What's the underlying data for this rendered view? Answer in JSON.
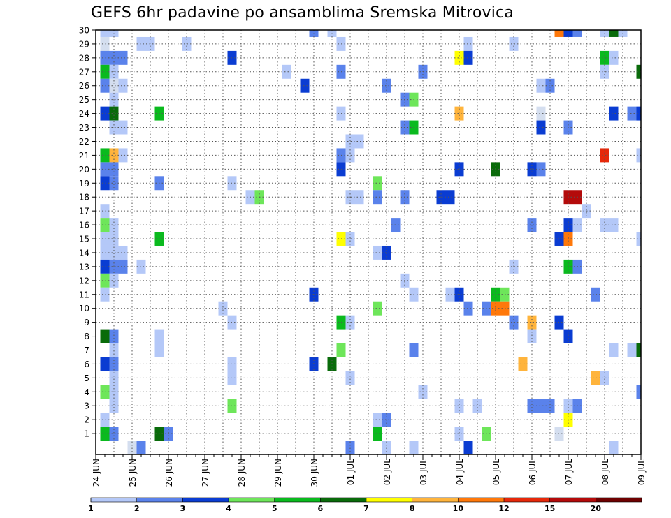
{
  "chart_data": {
    "type": "heatmap",
    "title": "GEFS 6hr padavine po ansamblima Sremska Mitrovica",
    "y_categories": [
      "1",
      "2",
      "3",
      "4",
      "5",
      "6",
      "7",
      "8",
      "9",
      "10",
      "11",
      "12",
      "13",
      "14",
      "15",
      "16",
      "17",
      "18",
      "19",
      "20",
      "21",
      "22",
      "23",
      "24",
      "25",
      "26",
      "27",
      "28",
      "29",
      "30"
    ],
    "x_tick_labels": [
      "24 JUN",
      "25 JUN",
      "26 JUN",
      "27 JUN",
      "28 JUN",
      "29 JUN",
      "30 JUN",
      "01 JUL",
      "02 JUL",
      "03 JUL",
      "04 JUL",
      "05 JUL",
      "06 JUL",
      "07 JUL",
      "08 JUL",
      "09 JUL"
    ],
    "x_range_days": [
      0,
      15
    ],
    "grid": true,
    "legend": {
      "placement": "bottom",
      "labels": [
        "1",
        "2",
        "3",
        "4",
        "5",
        "6",
        "7",
        "8",
        "10",
        "12",
        "15",
        "20"
      ],
      "colors": [
        "#b4c8f8",
        "#5a82eb",
        "#0a3cd2",
        "#6ee65a",
        "#0aba1e",
        "#096b0a",
        "#ffff00",
        "#ffb43c",
        "#ff780a",
        "#e6280a",
        "#b40a0a",
        "#6e0000"
      ]
    },
    "cells": [
      [
        0.25,
        30,
        0
      ],
      [
        0.25,
        29,
        -1
      ],
      [
        0.25,
        28,
        1
      ],
      [
        0.25,
        27,
        4
      ],
      [
        0.25,
        26,
        1
      ],
      [
        0.25,
        24,
        2
      ],
      [
        0.25,
        21,
        4
      ],
      [
        0.25,
        20,
        1
      ],
      [
        0.25,
        19,
        2
      ],
      [
        0.25,
        17,
        0
      ],
      [
        0.25,
        16,
        3
      ],
      [
        0.25,
        15,
        0
      ],
      [
        0.25,
        14,
        0
      ],
      [
        0.25,
        13,
        2
      ],
      [
        0.25,
        12,
        3
      ],
      [
        0.25,
        11,
        0
      ],
      [
        0.25,
        8,
        5
      ],
      [
        0.25,
        6,
        2
      ],
      [
        0.25,
        4,
        3
      ],
      [
        0.25,
        2,
        0
      ],
      [
        0.25,
        1,
        4
      ],
      [
        0.5,
        30,
        0
      ],
      [
        0.5,
        28,
        1
      ],
      [
        0.5,
        27,
        0
      ],
      [
        0.5,
        26,
        -1
      ],
      [
        0.5,
        25,
        0
      ],
      [
        0.5,
        24,
        5
      ],
      [
        0.5,
        23,
        0
      ],
      [
        0.5,
        21,
        7
      ],
      [
        0.5,
        20,
        1
      ],
      [
        0.5,
        19,
        1
      ],
      [
        0.5,
        16,
        0
      ],
      [
        0.5,
        15,
        0
      ],
      [
        0.5,
        14,
        0
      ],
      [
        0.5,
        13,
        1
      ],
      [
        0.5,
        12,
        0
      ],
      [
        0.5,
        8,
        1
      ],
      [
        0.5,
        7,
        0
      ],
      [
        0.5,
        6,
        1
      ],
      [
        0.5,
        5,
        0
      ],
      [
        0.5,
        4,
        0
      ],
      [
        0.5,
        3,
        0
      ],
      [
        0.5,
        1,
        1
      ],
      [
        0.75,
        28,
        1
      ],
      [
        0.75,
        26,
        0
      ],
      [
        0.75,
        23,
        0
      ],
      [
        0.75,
        21,
        0
      ],
      [
        0.75,
        14,
        0
      ],
      [
        0.75,
        13,
        1
      ],
      [
        1.0,
        0,
        -1
      ],
      [
        1.25,
        29,
        0
      ],
      [
        1.25,
        13,
        0
      ],
      [
        1.25,
        0,
        1
      ],
      [
        1.5,
        29,
        0
      ],
      [
        1.75,
        24,
        4
      ],
      [
        1.75,
        19,
        1
      ],
      [
        1.75,
        15,
        4
      ],
      [
        1.75,
        8,
        0
      ],
      [
        1.75,
        7,
        0
      ],
      [
        1.75,
        1,
        5
      ],
      [
        2.0,
        1,
        1
      ],
      [
        2.5,
        29,
        0
      ],
      [
        3.5,
        10,
        0
      ],
      [
        3.75,
        28,
        2
      ],
      [
        3.75,
        19,
        0
      ],
      [
        3.75,
        9,
        0
      ],
      [
        3.75,
        6,
        0
      ],
      [
        3.75,
        5,
        0
      ],
      [
        3.75,
        3,
        3
      ],
      [
        4.25,
        18,
        0
      ],
      [
        4.5,
        18,
        3
      ],
      [
        5.25,
        27,
        0
      ],
      [
        5.75,
        26,
        2
      ],
      [
        6.0,
        30,
        1
      ],
      [
        6.0,
        11,
        2
      ],
      [
        6.0,
        6,
        2
      ],
      [
        6.5,
        30,
        0
      ],
      [
        6.5,
        6,
        5
      ],
      [
        6.75,
        29,
        0
      ],
      [
        6.75,
        27,
        1
      ],
      [
        6.75,
        24,
        0
      ],
      [
        6.75,
        21,
        1
      ],
      [
        6.75,
        20,
        2
      ],
      [
        6.75,
        15,
        6
      ],
      [
        6.75,
        9,
        4
      ],
      [
        6.75,
        7,
        3
      ],
      [
        7.0,
        22,
        0
      ],
      [
        7.0,
        21,
        0
      ],
      [
        7.0,
        18,
        0
      ],
      [
        7.0,
        15,
        0
      ],
      [
        7.0,
        9,
        0
      ],
      [
        7.0,
        5,
        0
      ],
      [
        7.0,
        0,
        1
      ],
      [
        7.25,
        22,
        0
      ],
      [
        7.25,
        18,
        0
      ],
      [
        7.75,
        19,
        3
      ],
      [
        7.75,
        18,
        1
      ],
      [
        7.75,
        14,
        0
      ],
      [
        7.75,
        10,
        3
      ],
      [
        7.75,
        2,
        0
      ],
      [
        7.75,
        1,
        4
      ],
      [
        8.0,
        26,
        1
      ],
      [
        8.0,
        14,
        2
      ],
      [
        8.0,
        2,
        1
      ],
      [
        8.0,
        0,
        0
      ],
      [
        8.25,
        16,
        1
      ],
      [
        8.5,
        25,
        1
      ],
      [
        8.5,
        23,
        1
      ],
      [
        8.5,
        18,
        1
      ],
      [
        8.5,
        12,
        0
      ],
      [
        8.75,
        25,
        3
      ],
      [
        8.75,
        23,
        4
      ],
      [
        8.75,
        11,
        0
      ],
      [
        8.75,
        7,
        1
      ],
      [
        8.75,
        0,
        0
      ],
      [
        9.0,
        27,
        1
      ],
      [
        9.0,
        4,
        0
      ],
      [
        9.5,
        18,
        2
      ],
      [
        9.75,
        18,
        2
      ],
      [
        9.75,
        11,
        0
      ],
      [
        10.0,
        28,
        6
      ],
      [
        10.0,
        24,
        7
      ],
      [
        10.0,
        20,
        2
      ],
      [
        10.0,
        11,
        2
      ],
      [
        10.0,
        3,
        0
      ],
      [
        10.0,
        1,
        0
      ],
      [
        10.25,
        29,
        0
      ],
      [
        10.25,
        28,
        2
      ],
      [
        10.25,
        10,
        1
      ],
      [
        10.25,
        0,
        2
      ],
      [
        10.5,
        3,
        0
      ],
      [
        10.75,
        10,
        1
      ],
      [
        10.75,
        1,
        3
      ],
      [
        11.0,
        20,
        5
      ],
      [
        11.0,
        11,
        4
      ],
      [
        11.0,
        10,
        8
      ],
      [
        11.25,
        11,
        3
      ],
      [
        11.25,
        10,
        8
      ],
      [
        11.5,
        29,
        0
      ],
      [
        11.5,
        13,
        0
      ],
      [
        11.5,
        9,
        1
      ],
      [
        11.75,
        6,
        7
      ],
      [
        12.0,
        20,
        2
      ],
      [
        12.0,
        16,
        1
      ],
      [
        12.0,
        9,
        7
      ],
      [
        12.0,
        8,
        0
      ],
      [
        12.0,
        3,
        1
      ],
      [
        12.25,
        26,
        0
      ],
      [
        12.25,
        24,
        -1
      ],
      [
        12.25,
        23,
        2
      ],
      [
        12.25,
        20,
        1
      ],
      [
        12.25,
        3,
        1
      ],
      [
        12.5,
        26,
        1
      ],
      [
        12.5,
        3,
        1
      ],
      [
        12.75,
        30,
        8
      ],
      [
        12.75,
        15,
        2
      ],
      [
        12.75,
        9,
        2
      ],
      [
        12.75,
        1,
        -1
      ],
      [
        13.0,
        30,
        2
      ],
      [
        13.0,
        23,
        1
      ],
      [
        13.0,
        18,
        10
      ],
      [
        13.0,
        16,
        2
      ],
      [
        13.0,
        15,
        8
      ],
      [
        13.0,
        13,
        4
      ],
      [
        13.0,
        8,
        2
      ],
      [
        13.0,
        3,
        0
      ],
      [
        13.0,
        2,
        6
      ],
      [
        13.25,
        30,
        1
      ],
      [
        13.25,
        18,
        10
      ],
      [
        13.25,
        16,
        0
      ],
      [
        13.25,
        13,
        1
      ],
      [
        13.25,
        3,
        1
      ],
      [
        13.5,
        17,
        0
      ],
      [
        13.75,
        11,
        1
      ],
      [
        13.75,
        5,
        7
      ],
      [
        14.0,
        30,
        0
      ],
      [
        14.0,
        28,
        4
      ],
      [
        14.0,
        27,
        0
      ],
      [
        14.0,
        21,
        9
      ],
      [
        14.0,
        16,
        0
      ],
      [
        14.0,
        5,
        0
      ],
      [
        14.25,
        30,
        5
      ],
      [
        14.25,
        28,
        0
      ],
      [
        14.25,
        24,
        2
      ],
      [
        14.25,
        16,
        0
      ],
      [
        14.25,
        7,
        0
      ],
      [
        14.25,
        0,
        0
      ],
      [
        14.5,
        30,
        0
      ],
      [
        14.75,
        24,
        1
      ],
      [
        14.75,
        7,
        0
      ],
      [
        15.0,
        27,
        5
      ],
      [
        15.0,
        24,
        2
      ],
      [
        15.0,
        21,
        0
      ],
      [
        15.0,
        15,
        0
      ],
      [
        15.0,
        7,
        5
      ],
      [
        15.0,
        4,
        1
      ]
    ]
  }
}
